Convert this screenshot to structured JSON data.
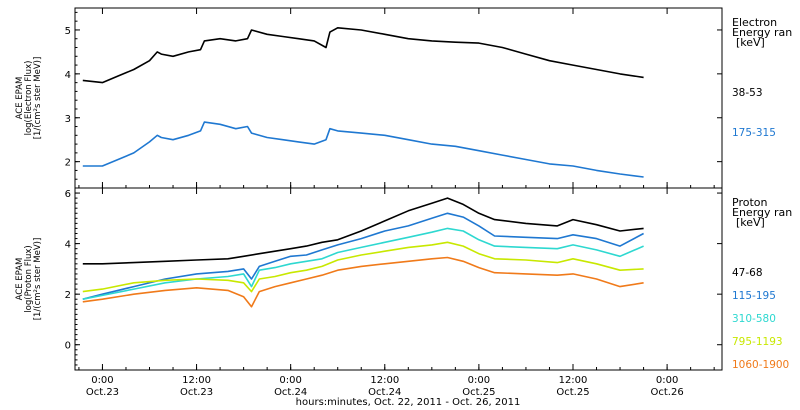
{
  "x_axis": {
    "label": "hours:minutes, Oct. 22, 2011 - Oct. 26, 2011",
    "range_hours": [
      -3.5,
      79
    ],
    "ticks": [
      {
        "hours": 0,
        "time": "0:00",
        "date": "Oct.23"
      },
      {
        "hours": 12,
        "time": "12:00",
        "date": "Oct.23"
      },
      {
        "hours": 24,
        "time": "0:00",
        "date": "Oct.24"
      },
      {
        "hours": 36,
        "time": "12:00",
        "date": "Oct.24"
      },
      {
        "hours": 48,
        "time": "0:00",
        "date": "Oct.25"
      },
      {
        "hours": 60,
        "time": "12:00",
        "date": "Oct.25"
      },
      {
        "hours": 72,
        "time": "0:00",
        "date": "Oct.26"
      }
    ]
  },
  "chart_data": [
    {
      "type": "line",
      "panel": "electron",
      "ylabel": [
        "ACE EPAM",
        "log(Electron Flux)",
        "[1/(cm²s ster MeV)]"
      ],
      "ylim": [
        1.4,
        5.5
      ],
      "yticks": [
        2,
        3,
        4,
        5
      ],
      "legend_title": [
        "Electron",
        "Energy ran",
        "[keV]"
      ],
      "series": [
        {
          "name": "38-53",
          "color": "#000000",
          "x": [
            -2.5,
            0,
            2,
            4,
            6,
            7,
            7.5,
            9,
            11,
            12.5,
            13,
            15,
            17,
            18.5,
            19,
            21,
            23,
            25,
            27,
            28.5,
            29,
            30,
            33,
            36,
            39,
            42,
            45,
            48,
            51,
            54,
            57,
            60,
            63,
            66,
            69
          ],
          "y": [
            3.85,
            3.8,
            3.95,
            4.1,
            4.3,
            4.5,
            4.45,
            4.4,
            4.5,
            4.55,
            4.75,
            4.8,
            4.75,
            4.8,
            5.0,
            4.9,
            4.85,
            4.8,
            4.75,
            4.6,
            4.95,
            5.05,
            5.0,
            4.9,
            4.8,
            4.75,
            4.72,
            4.7,
            4.6,
            4.45,
            4.3,
            4.2,
            4.1,
            4.0,
            3.92
          ]
        },
        {
          "name": "175-315",
          "color": "#1f78d1",
          "x": [
            -2.5,
            0,
            2,
            4,
            6,
            7,
            7.5,
            9,
            11,
            12.5,
            13,
            15,
            17,
            18.5,
            19,
            21,
            23,
            25,
            27,
            28.5,
            29,
            30,
            33,
            36,
            39,
            42,
            45,
            48,
            51,
            54,
            57,
            60,
            63,
            66,
            69
          ],
          "y": [
            1.9,
            1.9,
            2.05,
            2.2,
            2.45,
            2.6,
            2.55,
            2.5,
            2.6,
            2.7,
            2.9,
            2.85,
            2.75,
            2.8,
            2.65,
            2.55,
            2.5,
            2.45,
            2.4,
            2.5,
            2.75,
            2.7,
            2.65,
            2.6,
            2.5,
            2.4,
            2.35,
            2.25,
            2.15,
            2.05,
            1.95,
            1.9,
            1.8,
            1.72,
            1.65
          ]
        }
      ]
    },
    {
      "type": "line",
      "panel": "proton",
      "ylabel": [
        "ACE EPAM",
        "log(Proton Flux)",
        "[1/(cm²s ster MeV)]"
      ],
      "ylim": [
        -1,
        6.2
      ],
      "yticks": [
        0,
        2,
        4,
        6
      ],
      "legend_title": [
        "Proton",
        "Energy ran",
        "[keV]"
      ],
      "series": [
        {
          "name": "47-68",
          "color": "#000000",
          "x": [
            -2.5,
            0,
            4,
            8,
            12,
            16,
            18,
            20,
            22,
            24,
            26,
            28,
            30,
            33,
            36,
            39,
            42,
            44,
            46,
            48,
            50,
            54,
            58,
            60,
            63,
            66,
            69
          ],
          "y": [
            3.2,
            3.2,
            3.25,
            3.3,
            3.35,
            3.4,
            3.5,
            3.6,
            3.7,
            3.8,
            3.9,
            4.05,
            4.15,
            4.5,
            4.9,
            5.3,
            5.6,
            5.8,
            5.55,
            5.2,
            4.95,
            4.8,
            4.7,
            4.95,
            4.75,
            4.5,
            4.6
          ]
        },
        {
          "name": "115-195",
          "color": "#1f78d1",
          "x": [
            -2.5,
            0,
            4,
            8,
            12,
            16,
            18,
            19,
            20,
            22,
            24,
            26,
            28,
            30,
            33,
            36,
            39,
            42,
            44,
            46,
            48,
            50,
            54,
            58,
            60,
            63,
            66,
            69
          ],
          "y": [
            1.8,
            2.0,
            2.3,
            2.6,
            2.8,
            2.9,
            3.0,
            2.6,
            3.1,
            3.3,
            3.5,
            3.55,
            3.75,
            3.95,
            4.2,
            4.5,
            4.7,
            5.0,
            5.2,
            5.05,
            4.7,
            4.3,
            4.25,
            4.2,
            4.35,
            4.2,
            3.9,
            4.4
          ]
        },
        {
          "name": "310-580",
          "color": "#2ed8d0",
          "x": [
            -2.5,
            0,
            4,
            8,
            12,
            16,
            18,
            19,
            20,
            22,
            24,
            26,
            28,
            30,
            33,
            36,
            39,
            42,
            44,
            46,
            48,
            50,
            54,
            58,
            60,
            63,
            66,
            69
          ],
          "y": [
            1.8,
            1.95,
            2.2,
            2.45,
            2.6,
            2.7,
            2.8,
            2.3,
            2.95,
            3.05,
            3.2,
            3.3,
            3.4,
            3.65,
            3.85,
            4.05,
            4.25,
            4.45,
            4.6,
            4.5,
            4.15,
            3.9,
            3.85,
            3.8,
            3.95,
            3.75,
            3.5,
            3.9
          ]
        },
        {
          "name": "795-1193",
          "color": "#c8e800",
          "x": [
            -2.5,
            0,
            4,
            8,
            12,
            16,
            18,
            19,
            20,
            22,
            24,
            26,
            28,
            30,
            33,
            36,
            39,
            42,
            44,
            46,
            48,
            50,
            54,
            58,
            60,
            63,
            66,
            69
          ],
          "y": [
            2.1,
            2.2,
            2.45,
            2.55,
            2.6,
            2.55,
            2.45,
            2.1,
            2.6,
            2.7,
            2.85,
            2.95,
            3.1,
            3.35,
            3.55,
            3.7,
            3.85,
            3.95,
            4.05,
            3.9,
            3.6,
            3.4,
            3.35,
            3.25,
            3.4,
            3.2,
            2.95,
            3.0
          ]
        },
        {
          "name": "1060-1900",
          "color": "#f07a1a",
          "x": [
            -2.5,
            0,
            4,
            8,
            12,
            16,
            18,
            19,
            20,
            22,
            24,
            26,
            28,
            30,
            33,
            36,
            39,
            42,
            44,
            46,
            48,
            50,
            54,
            58,
            60,
            63,
            66,
            69
          ],
          "y": [
            1.7,
            1.8,
            2.0,
            2.15,
            2.25,
            2.15,
            1.9,
            1.5,
            2.1,
            2.3,
            2.45,
            2.6,
            2.75,
            2.95,
            3.1,
            3.2,
            3.3,
            3.4,
            3.45,
            3.3,
            3.05,
            2.85,
            2.8,
            2.75,
            2.8,
            2.6,
            2.3,
            2.45
          ]
        }
      ]
    }
  ]
}
